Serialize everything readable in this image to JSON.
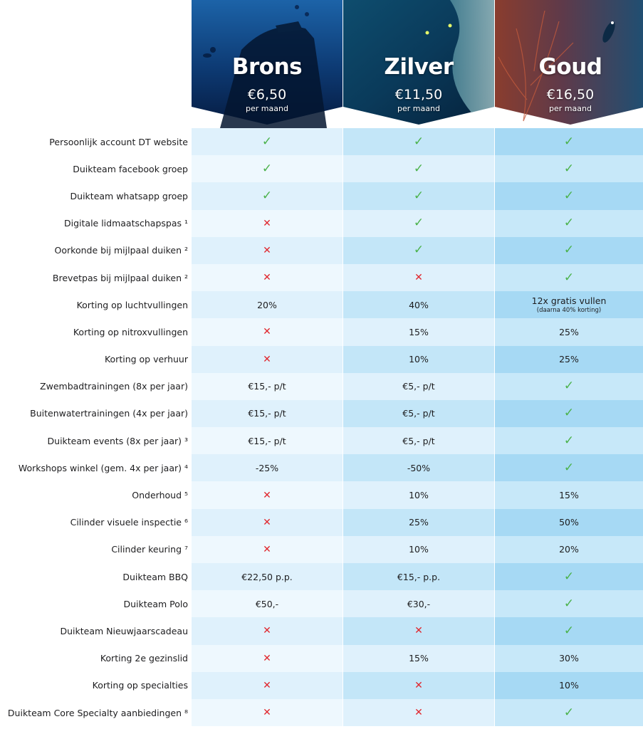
{
  "plans": [
    {
      "id": "brons",
      "name": "Brons",
      "price": "€6,50",
      "period": "per maand"
    },
    {
      "id": "zilver",
      "name": "Zilver",
      "price": "€11,50",
      "period": "per maand"
    },
    {
      "id": "goud",
      "name": "Goud",
      "price": "€16,50",
      "period": "per maand"
    }
  ],
  "icons": {
    "check": "check-icon",
    "cross": "cross-icon"
  },
  "colors": {
    "check": "#4bb24b",
    "cross": "#e0262d"
  },
  "rows": [
    {
      "label": "Persoonlijk account DT website",
      "values": [
        "check",
        "check",
        "check"
      ]
    },
    {
      "label": "Duikteam facebook groep",
      "values": [
        "check",
        "check",
        "check"
      ]
    },
    {
      "label": "Duikteam whatsapp groep",
      "values": [
        "check",
        "check",
        "check"
      ]
    },
    {
      "label": "Digitale lidmaatschapspas ¹",
      "values": [
        "cross",
        "check",
        "check"
      ]
    },
    {
      "label": "Oorkonde bij mijlpaal duiken ²",
      "values": [
        "cross",
        "check",
        "check"
      ]
    },
    {
      "label": "Brevetpas bij mijlpaal duiken ²",
      "values": [
        "cross",
        "cross",
        "check"
      ]
    },
    {
      "label": "Korting op luchtvullingen",
      "values": [
        "20%",
        "40%",
        "12x gratis vullen"
      ],
      "subs": [
        "",
        "",
        "(daarna 40% korting)"
      ]
    },
    {
      "label": "Korting op nitroxvullingen",
      "values": [
        "cross",
        "15%",
        "25%"
      ]
    },
    {
      "label": "Korting op verhuur",
      "values": [
        "cross",
        "10%",
        "25%"
      ]
    },
    {
      "label": "Zwembadtrainingen (8x per jaar)",
      "values": [
        "€15,- p/t",
        "€5,- p/t",
        "check"
      ]
    },
    {
      "label": "Buitenwatertrainingen (4x per jaar)",
      "values": [
        "€15,- p/t",
        "€5,- p/t",
        "check"
      ]
    },
    {
      "label": "Duikteam events (8x per jaar) ³",
      "values": [
        "€15,- p/t",
        "€5,- p/t",
        "check"
      ]
    },
    {
      "label": "Workshops winkel (gem. 4x per jaar) ⁴",
      "values": [
        "-25%",
        "-50%",
        "check"
      ]
    },
    {
      "label": "Onderhoud ⁵",
      "values": [
        "cross",
        "10%",
        "15%"
      ]
    },
    {
      "label": "Cilinder visuele inspectie ⁶",
      "values": [
        "cross",
        "25%",
        "50%"
      ]
    },
    {
      "label": "Cilinder keuring ⁷",
      "values": [
        "cross",
        "10%",
        "20%"
      ]
    },
    {
      "label": "Duikteam BBQ",
      "values": [
        "€22,50 p.p.",
        "€15,- p.p.",
        "check"
      ]
    },
    {
      "label": "Duikteam Polo",
      "values": [
        "€50,-",
        "€30,-",
        "check"
      ]
    },
    {
      "label": "Duikteam Nieuwjaarscadeau",
      "values": [
        "cross",
        "cross",
        "check"
      ]
    },
    {
      "label": "Korting 2e gezinslid",
      "values": [
        "cross",
        "15%",
        "30%"
      ]
    },
    {
      "label": "Korting op specialties",
      "values": [
        "cross",
        "cross",
        "10%"
      ]
    },
    {
      "label": "Duikteam Core Specialty aanbiedingen ⁸",
      "values": [
        "cross",
        "cross",
        "check"
      ]
    }
  ]
}
